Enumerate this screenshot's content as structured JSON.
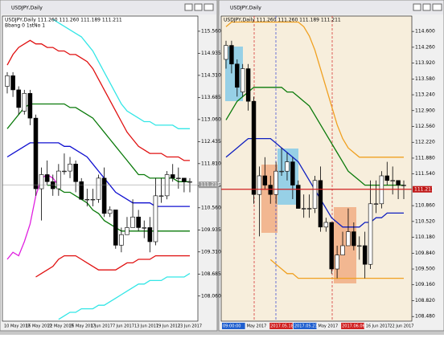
{
  "current_price": 111.211,
  "candles": [
    [
      114.0,
      114.4,
      113.8,
      114.3
    ],
    [
      114.3,
      114.4,
      113.7,
      113.9
    ],
    [
      113.9,
      114.0,
      113.2,
      113.4
    ],
    [
      113.3,
      113.9,
      113.2,
      113.8
    ],
    [
      113.8,
      113.9,
      112.9,
      113.1
    ],
    [
      113.1,
      113.2,
      110.9,
      111.1
    ],
    [
      111.1,
      111.7,
      110.2,
      111.5
    ],
    [
      111.5,
      111.9,
      111.2,
      111.3
    ],
    [
      111.3,
      111.5,
      110.9,
      111.1
    ],
    [
      111.1,
      111.8,
      110.9,
      111.6
    ],
    [
      111.6,
      112.1,
      111.5,
      111.6
    ],
    [
      111.6,
      112.0,
      111.4,
      111.8
    ],
    [
      111.8,
      111.9,
      111.0,
      111.3
    ],
    [
      111.3,
      111.4,
      110.8,
      110.8
    ],
    [
      110.8,
      111.1,
      110.6,
      110.8
    ],
    [
      110.8,
      111.1,
      110.6,
      110.8
    ],
    [
      110.8,
      111.5,
      110.7,
      111.4
    ],
    [
      111.4,
      111.7,
      110.3,
      110.4
    ],
    [
      110.4,
      110.6,
      110.3,
      110.5
    ],
    [
      110.5,
      110.5,
      109.4,
      109.5
    ],
    [
      109.5,
      110.0,
      109.3,
      109.8
    ],
    [
      109.8,
      110.3,
      109.8,
      110.0
    ],
    [
      110.0,
      110.8,
      110.0,
      110.3
    ],
    [
      110.3,
      110.5,
      109.9,
      110.0
    ],
    [
      110.0,
      110.2,
      109.7,
      110.0
    ],
    [
      110.0,
      110.3,
      109.3,
      109.6
    ],
    [
      109.6,
      111.4,
      109.5,
      110.9
    ],
    [
      110.9,
      111.4,
      110.7,
      110.9
    ],
    [
      110.9,
      111.6,
      110.8,
      111.5
    ],
    [
      111.5,
      111.8,
      111.3,
      111.4
    ],
    [
      111.4,
      111.7,
      111.1,
      111.4
    ],
    [
      111.4,
      111.4,
      111.0,
      111.3
    ],
    [
      111.3,
      111.4,
      111.0,
      111.3
    ]
  ],
  "windows": [
    {
      "title": "USDJPY,Daily",
      "info": [
        "USDJPY,Daily 111.260 111.260 111.189 111.211",
        "Bbang 0 1stNo 1"
      ],
      "background": "#ffffff",
      "ylim": [
        107.35,
        115.99
      ],
      "yticks": [
        {
          "value": 115.56,
          "label": "115.560"
        },
        {
          "value": 114.935,
          "label": "114.935"
        },
        {
          "value": 114.31,
          "label": "114.310"
        },
        {
          "value": 113.685,
          "label": "113.685"
        },
        {
          "value": 113.06,
          "label": "113.060"
        },
        {
          "value": 112.435,
          "label": "112.435"
        },
        {
          "value": 111.81,
          "label": "111.810"
        },
        {
          "value": 111.185,
          "label": "111.185"
        },
        {
          "value": 110.56,
          "label": "110.560"
        },
        {
          "value": 109.935,
          "label": "109.935"
        },
        {
          "value": 109.31,
          "label": "109.310"
        },
        {
          "value": 108.685,
          "label": "108.685"
        },
        {
          "value": 108.06,
          "label": "108.060"
        }
      ],
      "x_labels": [
        {
          "text": "10 May 2017"
        },
        {
          "text": "16 May 2017"
        },
        {
          "text": "22 May 2017"
        },
        {
          "text": "26 May 2017"
        },
        {
          "text": "1 Jun 2017"
        },
        {
          "text": "7 Jun 2017"
        },
        {
          "text": "13 Jun 2017"
        },
        {
          "text": "19 Jun 2017"
        },
        {
          "text": "23 Jun 2017"
        }
      ],
      "lines": [
        {
          "color": "#33e6e6",
          "values": [
            null,
            null,
            null,
            null,
            null,
            null,
            null,
            null,
            115.9,
            115.8,
            115.7,
            115.6,
            115.5,
            115.4,
            115.2,
            115.0,
            114.7,
            114.4,
            114.1,
            113.8,
            113.5,
            113.3,
            113.2,
            113.1,
            113.0,
            113.0,
            112.9,
            112.9,
            112.9,
            112.9,
            112.8,
            112.8,
            112.8
          ]
        },
        {
          "color": "#e01010",
          "values": [
            114.6,
            114.9,
            115.1,
            115.2,
            115.3,
            115.2,
            115.2,
            115.1,
            115.1,
            115.0,
            115.0,
            114.9,
            114.9,
            114.8,
            114.7,
            114.5,
            114.2,
            113.9,
            113.6,
            113.3,
            113.0,
            112.7,
            112.5,
            112.3,
            112.2,
            112.1,
            112.1,
            112.1,
            112.0,
            112.0,
            112.0,
            111.9,
            111.9
          ]
        },
        {
          "color": "#0a7a0a",
          "values": [
            112.8,
            113.0,
            113.2,
            113.4,
            113.5,
            113.5,
            113.5,
            113.5,
            113.5,
            113.5,
            113.5,
            113.4,
            113.4,
            113.3,
            113.2,
            113.1,
            112.9,
            112.7,
            112.5,
            112.3,
            112.1,
            111.9,
            111.7,
            111.5,
            111.5,
            111.4,
            111.4,
            111.4,
            111.4,
            111.4,
            111.3,
            111.3,
            111.3
          ]
        },
        {
          "color": "#1010d0",
          "values": [
            112.0,
            112.1,
            112.2,
            112.3,
            112.4,
            112.4,
            112.4,
            112.4,
            112.4,
            112.4,
            112.3,
            112.3,
            112.2,
            112.1,
            112.0,
            111.8,
            111.6,
            111.4,
            111.2,
            111.0,
            110.9,
            110.8,
            110.7,
            110.7,
            110.7,
            110.7,
            110.6,
            110.6,
            110.6,
            110.6,
            110.6,
            110.6,
            110.6
          ]
        },
        {
          "color": "#0a7a0a",
          "values": [
            null,
            null,
            null,
            null,
            null,
            null,
            null,
            111.2,
            111.2,
            111.1,
            111.0,
            111.0,
            110.9,
            110.8,
            110.7,
            110.5,
            110.4,
            110.2,
            110.1,
            110.0,
            109.9,
            109.9,
            109.9,
            109.9,
            109.9,
            109.9,
            109.9,
            109.9,
            109.9,
            109.9,
            109.9,
            109.9,
            109.9
          ]
        },
        {
          "color": "#e01010",
          "values": [
            null,
            null,
            null,
            null,
            null,
            108.6,
            108.7,
            108.8,
            108.9,
            109.1,
            109.2,
            109.2,
            109.2,
            109.1,
            109.0,
            108.9,
            108.8,
            108.8,
            108.8,
            108.8,
            108.9,
            109.0,
            109.0,
            109.1,
            109.1,
            109.1,
            109.2,
            109.2,
            109.2,
            109.2,
            109.2,
            109.2,
            109.2
          ]
        },
        {
          "color": "#33e6e6",
          "values": [
            null,
            null,
            null,
            null,
            null,
            null,
            null,
            null,
            null,
            107.4,
            107.5,
            107.6,
            107.6,
            107.7,
            107.7,
            107.7,
            107.8,
            107.8,
            107.9,
            108.0,
            108.1,
            108.2,
            108.3,
            108.4,
            108.4,
            108.5,
            108.5,
            108.5,
            108.6,
            108.6,
            108.6,
            108.6,
            108.7
          ]
        },
        {
          "color": "#e020e0",
          "values": [
            109.1,
            109.3,
            109.2,
            109.6,
            110.1,
            110.9,
            111.4,
            111.5,
            111.4,
            111.2,
            null,
            null,
            null,
            null,
            null,
            null,
            null,
            null,
            null,
            null,
            null,
            null,
            null,
            null,
            null,
            null,
            null,
            null,
            null,
            null,
            null,
            null,
            null
          ]
        }
      ]
    },
    {
      "title": "USDJPY,Daily",
      "info": [
        "USDJPY,Daily 111.260 111.260 111.189 111.211"
      ],
      "background": "#f7eedc",
      "ylim": [
        108.38,
        114.93
      ],
      "yticks": [
        {
          "value": 114.6,
          "label": "114.600"
        },
        {
          "value": 114.26,
          "label": "114.260"
        },
        {
          "value": 113.92,
          "label": "113.920"
        },
        {
          "value": 113.58,
          "label": "113.580"
        },
        {
          "value": 113.24,
          "label": "113.240"
        },
        {
          "value": 112.9,
          "label": "112.900"
        },
        {
          "value": 112.56,
          "label": "112.560"
        },
        {
          "value": 112.22,
          "label": "112.220"
        },
        {
          "value": 111.88,
          "label": "111.880"
        },
        {
          "value": 111.54,
          "label": "111.540"
        },
        {
          "value": 110.86,
          "label": "110.860"
        },
        {
          "value": 110.52,
          "label": "110.520"
        },
        {
          "value": 110.18,
          "label": "110.180"
        },
        {
          "value": 109.84,
          "label": "109.840"
        },
        {
          "value": 109.5,
          "label": "109.500"
        },
        {
          "value": 109.16,
          "label": "109.160"
        },
        {
          "value": 108.82,
          "label": "108.820"
        },
        {
          "value": 108.48,
          "label": "108.480"
        }
      ],
      "x_labels": [
        {
          "text": "09:00:00",
          "background": "#1f5fcf"
        },
        {
          "text": "May 2017"
        },
        {
          "text": "2017.05.18",
          "background": "#d02020"
        },
        {
          "text": "2017.05.23 18:00",
          "background": "#1f5fcf"
        },
        {
          "text": "May 2017"
        },
        {
          "text": "2017.06.06 08:00",
          "background": "#d02020"
        },
        {
          "text": "16 Jun 2017"
        },
        {
          "text": "22 Jun 2017"
        }
      ],
      "lines": [
        {
          "color": "#f0a020",
          "values": [
            114.7,
            114.8,
            114.8,
            114.8,
            114.8,
            114.8,
            114.8,
            114.8,
            114.8,
            114.8,
            114.8,
            114.8,
            114.8,
            114.8,
            114.7,
            114.5,
            114.2,
            113.8,
            113.4,
            113.0,
            112.6,
            112.3,
            112.1,
            112.0,
            111.9,
            111.9,
            111.9,
            111.9,
            111.9,
            111.9,
            111.9,
            111.9,
            111.9
          ]
        },
        {
          "color": "#0a7a0a",
          "values": [
            112.7,
            112.9,
            113.1,
            113.2,
            113.3,
            113.4,
            113.4,
            113.4,
            113.4,
            113.4,
            113.4,
            113.3,
            113.3,
            113.2,
            113.1,
            113.0,
            112.8,
            112.6,
            112.4,
            112.2,
            112.0,
            111.8,
            111.6,
            111.5,
            111.4,
            111.3,
            111.3,
            111.3,
            111.3,
            111.3,
            111.3,
            111.3,
            111.3
          ]
        },
        {
          "color": "#1020c0",
          "values": [
            111.9,
            112.0,
            112.1,
            112.2,
            112.3,
            112.3,
            112.3,
            112.3,
            112.3,
            112.2,
            112.1,
            112.0,
            111.9,
            111.8,
            111.6,
            111.4,
            111.2,
            111.0,
            110.8,
            110.6,
            110.5,
            110.4,
            110.4,
            110.4,
            110.4,
            110.5,
            110.5,
            110.6,
            110.6,
            110.7,
            110.7,
            110.7,
            110.7
          ]
        },
        {
          "color": "#f0a020",
          "values": [
            null,
            null,
            null,
            null,
            null,
            null,
            null,
            null,
            109.7,
            109.6,
            109.5,
            109.4,
            109.4,
            109.3,
            109.3,
            109.3,
            109.3,
            109.3,
            109.3,
            109.3,
            109.3,
            109.3,
            109.3,
            109.3,
            109.3,
            109.3,
            109.3,
            109.3,
            109.3,
            109.3,
            109.3,
            109.3,
            109.3
          ]
        }
      ]
    }
  ]
}
